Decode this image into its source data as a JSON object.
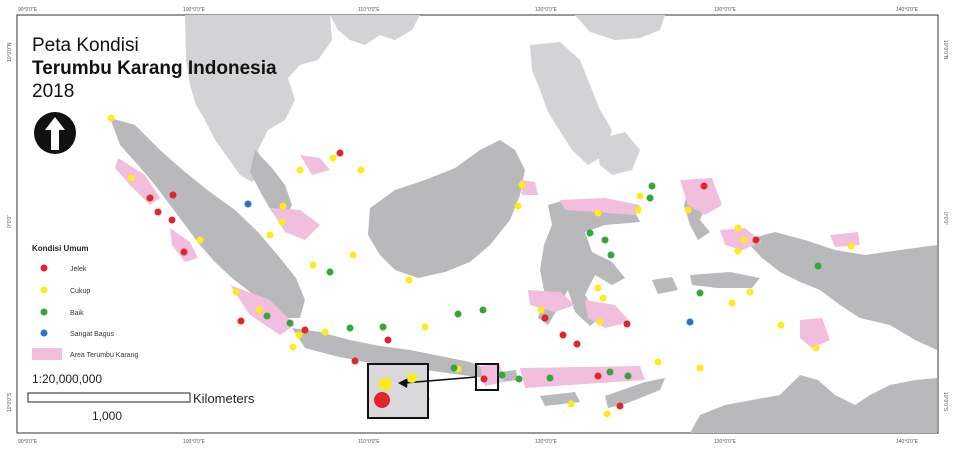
{
  "title": {
    "line1": "Peta Kondisi",
    "line2": "Terumbu Karang Indonesia",
    "line3": "2018"
  },
  "legend": {
    "title": "Kondisi Umum",
    "items": [
      {
        "label": "Jelek",
        "color": "#e0262b"
      },
      {
        "label": "Cukup",
        "color": "#ffeb1a"
      },
      {
        "label": "Baik",
        "color": "#38a53a"
      },
      {
        "label": "Sangat Bagus",
        "color": "#2f6fd0"
      }
    ],
    "area_label": "Area Terumbu Karang",
    "area_color": "#f2bede"
  },
  "scale": {
    "ratio": "1:20,000,000",
    "bar_value": "1,000",
    "unit": "Kilometers"
  },
  "graticule": {
    "top": [
      "90°0'0\"E",
      "100°0'0\"E",
      "110°0'0\"E",
      "120°0'0\"E",
      "130°0'0\"E",
      "140°0'0\"E"
    ],
    "bottom": [
      "90°0'0\"E",
      "100°0'0\"E",
      "110°0'0\"E",
      "120°0'0\"E",
      "130°0'0\"E",
      "140°0'0\"E"
    ],
    "left": [
      "10°0'0\"N",
      "0°0'0\"",
      "10°0'0\"S"
    ],
    "right": [
      "10°0'0\"N",
      "0°0'0\"",
      "10°0'0\"S"
    ]
  },
  "colors": {
    "land": "#b9b9bc",
    "land_light": "#d6d6d8",
    "reef": "#f2bede",
    "sea": "#ffffff",
    "frame": "#333333"
  },
  "north_arrow": "north-arrow-icon"
}
